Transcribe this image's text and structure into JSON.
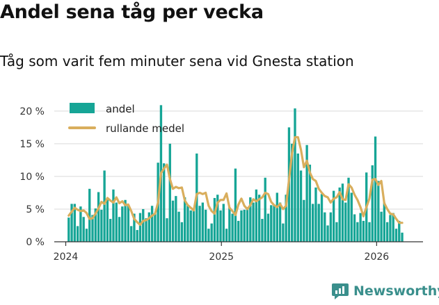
{
  "header": {
    "title": "Andel sena tåg per vecka",
    "subtitle": "Tåg som varit fem minuter sena vid Gnesta station"
  },
  "brand": {
    "name": "Newsworthy",
    "color": "#3a8f8c"
  },
  "colors": {
    "bar": "#16a596",
    "line": "#d9ae5d",
    "grid": "#d9d9d9",
    "axis": "#333333"
  },
  "chart_data": {
    "type": "bar",
    "title": "Andel sena tåg per vecka",
    "subtitle": "Tåg som varit fem minuter sena vid Gnesta station",
    "xlabel": "",
    "ylabel": "",
    "x_range": [
      "2023-12-05",
      "2026-04-20"
    ],
    "xlim_start": "2023-12-05",
    "xlim_end": "2026-04-20",
    "ylim": [
      0,
      22
    ],
    "y_ticks": [
      0,
      5,
      10,
      15,
      20
    ],
    "y_tick_labels": [
      "0 %",
      "5 %",
      "10 %",
      "15 %",
      "20 %"
    ],
    "x_ticks": [
      "2024-01-01",
      "2025-01-01",
      "2026-01-01"
    ],
    "x_tick_labels": [
      "2024",
      "2025",
      "2026"
    ],
    "grid": "horizontal",
    "legend_position": "top-left",
    "legend": [
      "andel",
      "rullande medel"
    ],
    "x_start_week": "2024-01-08",
    "x_interval": "weekly",
    "series": [
      {
        "name": "andel",
        "type": "bar",
        "values": [
          3.7,
          5.8,
          5.8,
          2.4,
          5.4,
          3.8,
          2.0,
          8.1,
          4.1,
          5.1,
          7.6,
          4.9,
          10.9,
          6.5,
          3.5,
          8.0,
          6.0,
          3.8,
          5.4,
          6.4,
          5.5,
          2.4,
          4.3,
          1.8,
          4.4,
          5.0,
          3.6,
          4.5,
          5.5,
          4.3,
          12.1,
          20.9,
          12.0,
          3.6,
          15.0,
          6.3,
          7.0,
          4.6,
          3.0,
          6.8,
          5.6,
          4.8,
          4.8,
          13.5,
          5.5,
          6.0,
          4.9,
          2.0,
          2.8,
          6.7,
          7.2,
          4.8,
          5.8,
          2.0,
          5.3,
          4.3,
          11.2,
          3.2,
          4.8,
          4.9,
          5.3,
          6.8,
          6.0,
          8.0,
          7.2,
          3.5,
          9.8,
          4.3,
          5.6,
          5.6,
          7.5,
          6.0,
          2.8,
          7.2,
          17.5,
          15.0,
          20.4,
          13.5,
          10.9,
          6.4,
          14.8,
          11.8,
          5.8,
          8.3,
          5.8,
          7.3,
          4.5,
          2.5,
          4.5,
          7.8,
          3.0,
          8.3,
          8.9,
          6.0,
          9.8,
          7.5,
          4.2,
          3.0,
          4.4,
          3.2,
          10.6,
          3.0,
          11.7,
          16.1,
          9.3,
          4.6,
          6.0,
          3.0,
          4.1,
          4.4,
          2.0,
          3.2,
          1.4
        ]
      },
      {
        "name": "rullande medel",
        "type": "line",
        "values": [
          4.0,
          4.6,
          5.2,
          4.9,
          4.7,
          4.8,
          4.4,
          3.5,
          3.6,
          4.3,
          5.1,
          6.1,
          5.8,
          6.7,
          6.3,
          6.0,
          6.8,
          5.9,
          6.2,
          5.6,
          5.7,
          4.7,
          3.5,
          3.0,
          2.6,
          3.2,
          3.3,
          3.6,
          4.0,
          4.3,
          6.0,
          10.5,
          11.2,
          11.8,
          9.6,
          8.1,
          8.4,
          8.2,
          8.3,
          6.3,
          5.6,
          5.2,
          4.8,
          7.3,
          7.5,
          7.3,
          7.5,
          5.5,
          4.7,
          4.3,
          6.0,
          6.4,
          6.4,
          7.4,
          5.2,
          4.7,
          4.1,
          5.7,
          6.6,
          5.5,
          5.0,
          5.6,
          6.5,
          6.2,
          6.5,
          6.8,
          7.5,
          7.3,
          6.1,
          5.6,
          5.3,
          5.8,
          5.0,
          5.5,
          9.5,
          13.5,
          16.0,
          16.0,
          14.1,
          11.4,
          12.4,
          10.6,
          9.6,
          9.3,
          8.1,
          7.5,
          7.0,
          6.8,
          6.0,
          6.6,
          6.8,
          7.6,
          6.5,
          6.4,
          8.8,
          8.3,
          7.2,
          6.4,
          5.3,
          3.9,
          5.3,
          6.6,
          9.5,
          9.6,
          8.7,
          9.3,
          5.9,
          5.0,
          4.3,
          4.2,
          3.5,
          2.9,
          2.9
        ]
      }
    ]
  }
}
